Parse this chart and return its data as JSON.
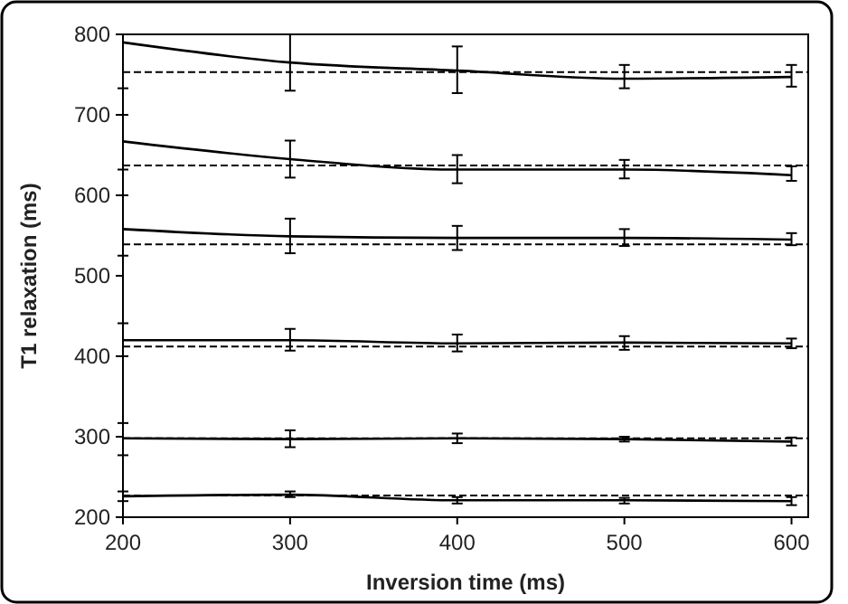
{
  "chart_data": {
    "type": "line",
    "xlabel": "Inversion time (ms)",
    "ylabel": "T1 relaxation (ms)",
    "x": [
      200,
      300,
      400,
      500,
      600
    ],
    "xlim": [
      200,
      610
    ],
    "xticks": [
      200,
      300,
      400,
      500,
      600
    ],
    "ylim": [
      200,
      800
    ],
    "yticks": [
      200,
      300,
      400,
      500,
      600,
      700,
      800
    ],
    "grid": false,
    "marker": "none",
    "line_style": "solid",
    "series": [
      {
        "color": "#000000",
        "values": [
          790,
          765,
          755,
          745,
          747
        ],
        "errors": [
          [
            733,
            800
          ],
          [
            730,
            800
          ],
          [
            727,
            785
          ],
          [
            733,
            762
          ],
          [
            735,
            762
          ]
        ]
      },
      {
        "color": "#000000",
        "values": [
          667,
          645,
          632,
          632,
          625
        ],
        "errors": [
          [
            632,
            700
          ],
          [
            622,
            668
          ],
          [
            615,
            650
          ],
          [
            621,
            644
          ],
          [
            618,
            636
          ]
        ]
      },
      {
        "color": "#000000",
        "values": [
          558,
          549,
          547,
          547,
          545
        ],
        "errors": [
          [
            525,
            600
          ],
          [
            528,
            571
          ],
          [
            532,
            562
          ],
          [
            537,
            558
          ],
          [
            538,
            553
          ]
        ]
      },
      {
        "color": "#000000",
        "values": [
          420,
          420,
          416,
          417,
          416
        ],
        "errors": [
          [
            400,
            441
          ],
          [
            407,
            434
          ],
          [
            406,
            427
          ],
          [
            408,
            425
          ],
          [
            410,
            422
          ]
        ]
      },
      {
        "color": "#000000",
        "values": [
          298,
          297,
          298,
          297,
          294
        ],
        "errors": [
          [
            277,
            317
          ],
          [
            287,
            308
          ],
          [
            292,
            304
          ],
          [
            294,
            300
          ],
          [
            289,
            299
          ]
        ]
      },
      {
        "color": "#000000",
        "values": [
          226,
          228,
          221,
          221,
          220
        ],
        "errors": [
          [
            220,
            232
          ],
          [
            225,
            232
          ],
          [
            217,
            225
          ],
          [
            217,
            224
          ],
          [
            215,
            225
          ]
        ]
      }
    ],
    "ref_lines": [
      {
        "axis": "y",
        "value": 753,
        "color": "#000000",
        "line_style": "dashed"
      },
      {
        "axis": "y",
        "value": 637,
        "color": "#000000",
        "line_style": "dashed"
      },
      {
        "axis": "y",
        "value": 539,
        "color": "#000000",
        "line_style": "dashed"
      },
      {
        "axis": "y",
        "value": 412,
        "color": "#000000",
        "line_style": "dashed"
      },
      {
        "axis": "y",
        "value": 298,
        "color": "#000000",
        "line_style": "dashed"
      },
      {
        "axis": "y",
        "value": 227,
        "color": "#000000",
        "line_style": "dashed"
      }
    ]
  }
}
